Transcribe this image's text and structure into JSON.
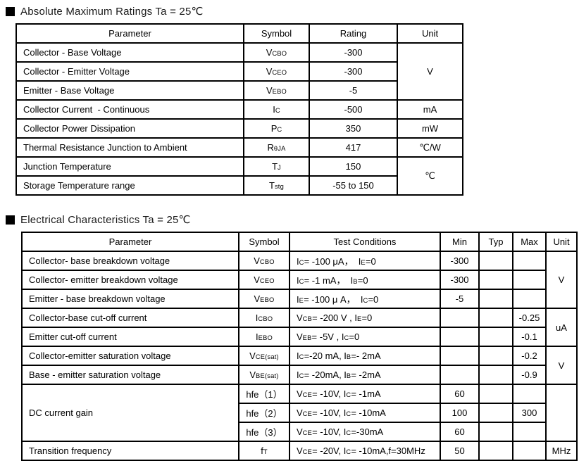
{
  "sections": [
    {
      "title": "Absolute Maximum Ratings Ta = 25℃",
      "table": {
        "headers": [
          "Parameter",
          "Symbol",
          "Rating",
          "Unit"
        ],
        "rows": [
          {
            "param": "Collector - Base Voltage",
            "symbol": "V~CBO~",
            "rating": "-300",
            "unit": "V"
          },
          {
            "param": "Collector - Emitter Voltage",
            "symbol": "V~CEO~",
            "rating": "-300"
          },
          {
            "param": "Emitter - Base Voltage",
            "symbol": "V~EBO~",
            "rating": "-5"
          },
          {
            "param": "Collector Current  - Continuous",
            "symbol": "I~C~",
            "rating": "-500",
            "unit": "mA"
          },
          {
            "param": "Collector Power Dissipation",
            "symbol": "P~C~",
            "rating": "350",
            "unit": "mW"
          },
          {
            "param": "Thermal Resistance Junction to Ambient",
            "symbol": "R~θJA~",
            "rating": "417",
            "unit": "℃/W"
          },
          {
            "param": "Junction Temperature",
            "symbol": "T~J~",
            "rating": "150",
            "unit": "℃"
          },
          {
            "param": "Storage Temperature range",
            "symbol": "T~stg~",
            "rating": "-55 to 150"
          }
        ]
      }
    },
    {
      "title": "Electrical Characteristics Ta = 25℃",
      "table": {
        "headers": [
          "Parameter",
          "Symbol",
          "Test Conditions",
          "Min",
          "Typ",
          "Max",
          "Unit"
        ],
        "rows": [
          {
            "param": "Collector- base breakdown voltage",
            "symbol": "V~CBO~",
            "cond": "I~C~= -100 μA，  I~E~=0",
            "min": "-300",
            "typ": "",
            "max": "",
            "unit": "V"
          },
          {
            "param": "Collector- emitter breakdown voltage",
            "symbol": "V~CEO~",
            "cond": "I~C~= -1 mA，  I~B~=0",
            "min": "-300",
            "typ": "",
            "max": ""
          },
          {
            "param": "Emitter - base breakdown voltage",
            "symbol": "V~EBO~",
            "cond": "I~E~= -100 μ A，  I~C~=0",
            "min": "-5",
            "typ": "",
            "max": ""
          },
          {
            "param": "Collector-base cut-off current",
            "symbol": "I~CBO~",
            "cond": "V~CB~= -200 V , I~E~=0",
            "min": "",
            "typ": "",
            "max": "-0.25",
            "unit": "uA"
          },
          {
            "param": "Emitter cut-off current",
            "symbol": "I~EBO~",
            "cond": "V~EB~= -5V , I~C~=0",
            "min": "",
            "typ": "",
            "max": "-0.1"
          },
          {
            "param": "Collector-emitter saturation voltage",
            "symbol": "V~CE(sat)~",
            "cond": "I~C~=-20 mA, I~B~=- 2mA",
            "min": "",
            "typ": "",
            "max": "-0.2",
            "unit": "V"
          },
          {
            "param": "Base - emitter saturation voltage",
            "symbol": "V~BE(sat)~",
            "cond": "I~C~= -20mA, I~B~= -2mA",
            "min": "",
            "typ": "",
            "max": "-0.9"
          },
          {
            "param": "DC current gain",
            "symbol": "hfe（1）",
            "cond": "V~CE~= -10V, I~C~= -1mA",
            "min": "60",
            "typ": "",
            "max": "",
            "unit": ""
          },
          {
            "symbol": "hfe（2）",
            "cond": "V~CE~= -10V, I~C~= -10mA",
            "min": "100",
            "typ": "",
            "max": "300"
          },
          {
            "symbol": "hfe（3）",
            "cond": "V~CE~= -10V, I~C~=-30mA",
            "min": "60",
            "typ": "",
            "max": ""
          },
          {
            "param": "Transition frequency",
            "symbol": "f~T~",
            "cond": "V~CE~= -20V, I~C~= -10mA,f=30MHz",
            "min": "50",
            "typ": "",
            "max": "",
            "unit": "MHz"
          }
        ]
      }
    }
  ]
}
